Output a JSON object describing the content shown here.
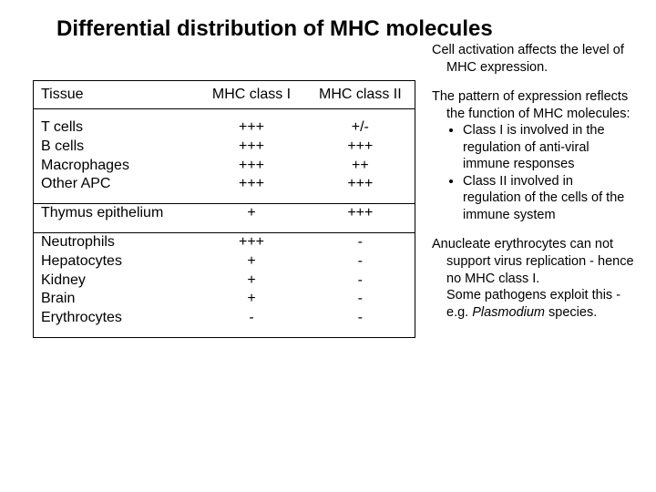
{
  "title": "Differential distribution of MHC molecules",
  "table": {
    "headers": {
      "c1": "Tissue",
      "c2": "MHC class I",
      "c3": "MHC class II"
    },
    "groups": [
      [
        {
          "tissue": "T cells",
          "c1": "+++",
          "c2": "+/-"
        },
        {
          "tissue": "B cells",
          "c1": "+++",
          "c2": "+++"
        },
        {
          "tissue": "Macrophages",
          "c1": "+++",
          "c2": "++"
        },
        {
          "tissue": "Other APC",
          "c1": "+++",
          "c2": "+++"
        }
      ],
      [
        {
          "tissue": "Thymus epithelium",
          "c1": "+",
          "c2": "+++"
        }
      ],
      [
        {
          "tissue": "Neutrophils",
          "c1": "+++",
          "c2": "-"
        },
        {
          "tissue": "Hepatocytes",
          "c1": "+",
          "c2": "-"
        },
        {
          "tissue": "Kidney",
          "c1": "+",
          "c2": "-"
        },
        {
          "tissue": "Brain",
          "c1": "+",
          "c2": "-"
        },
        {
          "tissue": "Erythrocytes",
          "c1": "-",
          "c2": "-"
        }
      ]
    ]
  },
  "side": {
    "p1": "Cell activation affects the level of MHC expression.",
    "p2_lead": "The pattern of expression reflects the function of MHC molecules:",
    "b1": "Class I is involved in the regulation of anti-viral immune responses",
    "b2": "Class II involved in regulation of the cells of the immune system",
    "p3a": "Anucleate erythrocytes can not support virus replication - hence no MHC class I.",
    "p3b_pre": "Some pathogens exploit this - e.g. ",
    "p3b_ital": "Plasmodium",
    "p3b_post": " species."
  },
  "colors": {
    "text": "#000000",
    "bg": "#ffffff",
    "border": "#000000"
  }
}
